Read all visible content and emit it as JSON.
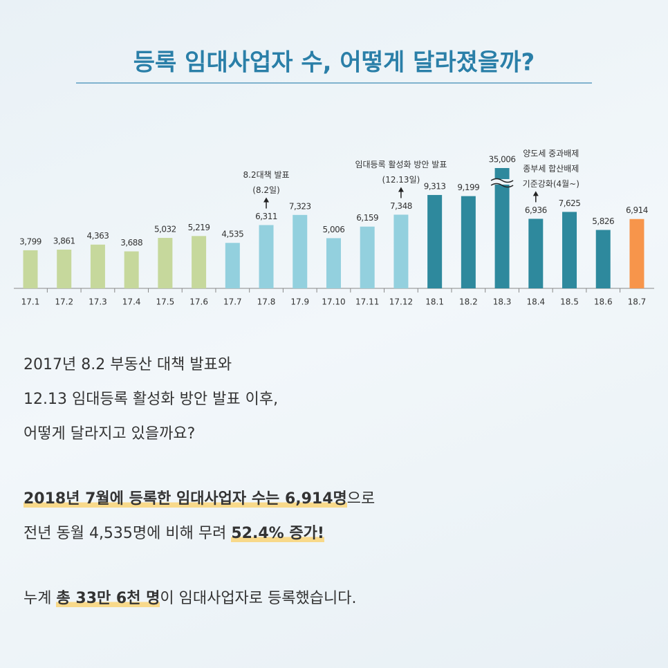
{
  "chart_data": {
    "type": "bar",
    "title": "등록 임대사업자 수, 어떻게 달라졌을까?",
    "categories": [
      "17.1",
      "17.2",
      "17.3",
      "17.4",
      "17.5",
      "17.6",
      "17.7",
      "17.8",
      "17.9",
      "17.10",
      "17.11",
      "17.12",
      "18.1",
      "18.2",
      "18.3",
      "18.4",
      "18.5",
      "18.6",
      "18.7"
    ],
    "values": [
      3799,
      3861,
      4363,
      3688,
      5032,
      5219,
      4535,
      6311,
      7323,
      5006,
      6159,
      7348,
      9313,
      9199,
      35006,
      6936,
      7625,
      5826,
      6914
    ],
    "value_labels": [
      "3,799",
      "3,861",
      "4,363",
      "3,688",
      "5,032",
      "5,219",
      "4,535",
      "6,311",
      "7,323",
      "5,006",
      "6,159",
      "7,348",
      "9,313",
      "9,199",
      "35,006",
      "6,936",
      "7,625",
      "5,826",
      "6,914"
    ],
    "colors": [
      "#c6d89c",
      "#c6d89c",
      "#c6d89c",
      "#c6d89c",
      "#c6d89c",
      "#c6d89c",
      "#93d0de",
      "#93d0de",
      "#93d0de",
      "#93d0de",
      "#93d0de",
      "#93d0de",
      "#2e899d",
      "#2e899d",
      "#2e899d",
      "#2e899d",
      "#2e899d",
      "#2e899d",
      "#f7954b"
    ],
    "ylim": [
      0,
      12000
    ],
    "annotations": [
      {
        "category": "17.8",
        "lines": [
          "8.2대책 발표",
          "(8.2일)"
        ]
      },
      {
        "category": "17.12",
        "lines": [
          "임대등록 활성화 방안 발표",
          "(12.13일)"
        ]
      },
      {
        "category": "18.4",
        "lines": [
          "양도세 중과배제",
          "종부세 합산배제",
          "기준강화(4월~)"
        ]
      }
    ]
  },
  "body": {
    "paragraphs": [
      [
        [
          {
            "text": "2017년 8.2 부동산 대책 발표와"
          }
        ],
        [
          {
            "text": "12.13 임대등록 활성화 방안 발표 이후,"
          }
        ],
        [
          {
            "text": "어떻게 달라지고 있을까요?"
          }
        ]
      ],
      [
        [
          {
            "text": "2018년 7월에 등록한 임대사업자 수는 6,914명",
            "bold": true
          },
          {
            "text": "으로"
          }
        ],
        [
          {
            "text": "전년 동월 4,535명에 비해 무려 "
          },
          {
            "text": "52.4% 증가!",
            "bold": true
          }
        ]
      ],
      [
        [
          {
            "text": "누계 "
          },
          {
            "text": "총 33만 6천 명",
            "bold": true
          },
          {
            "text": "이 임대사업자로 등록했습니다."
          }
        ]
      ]
    ]
  }
}
